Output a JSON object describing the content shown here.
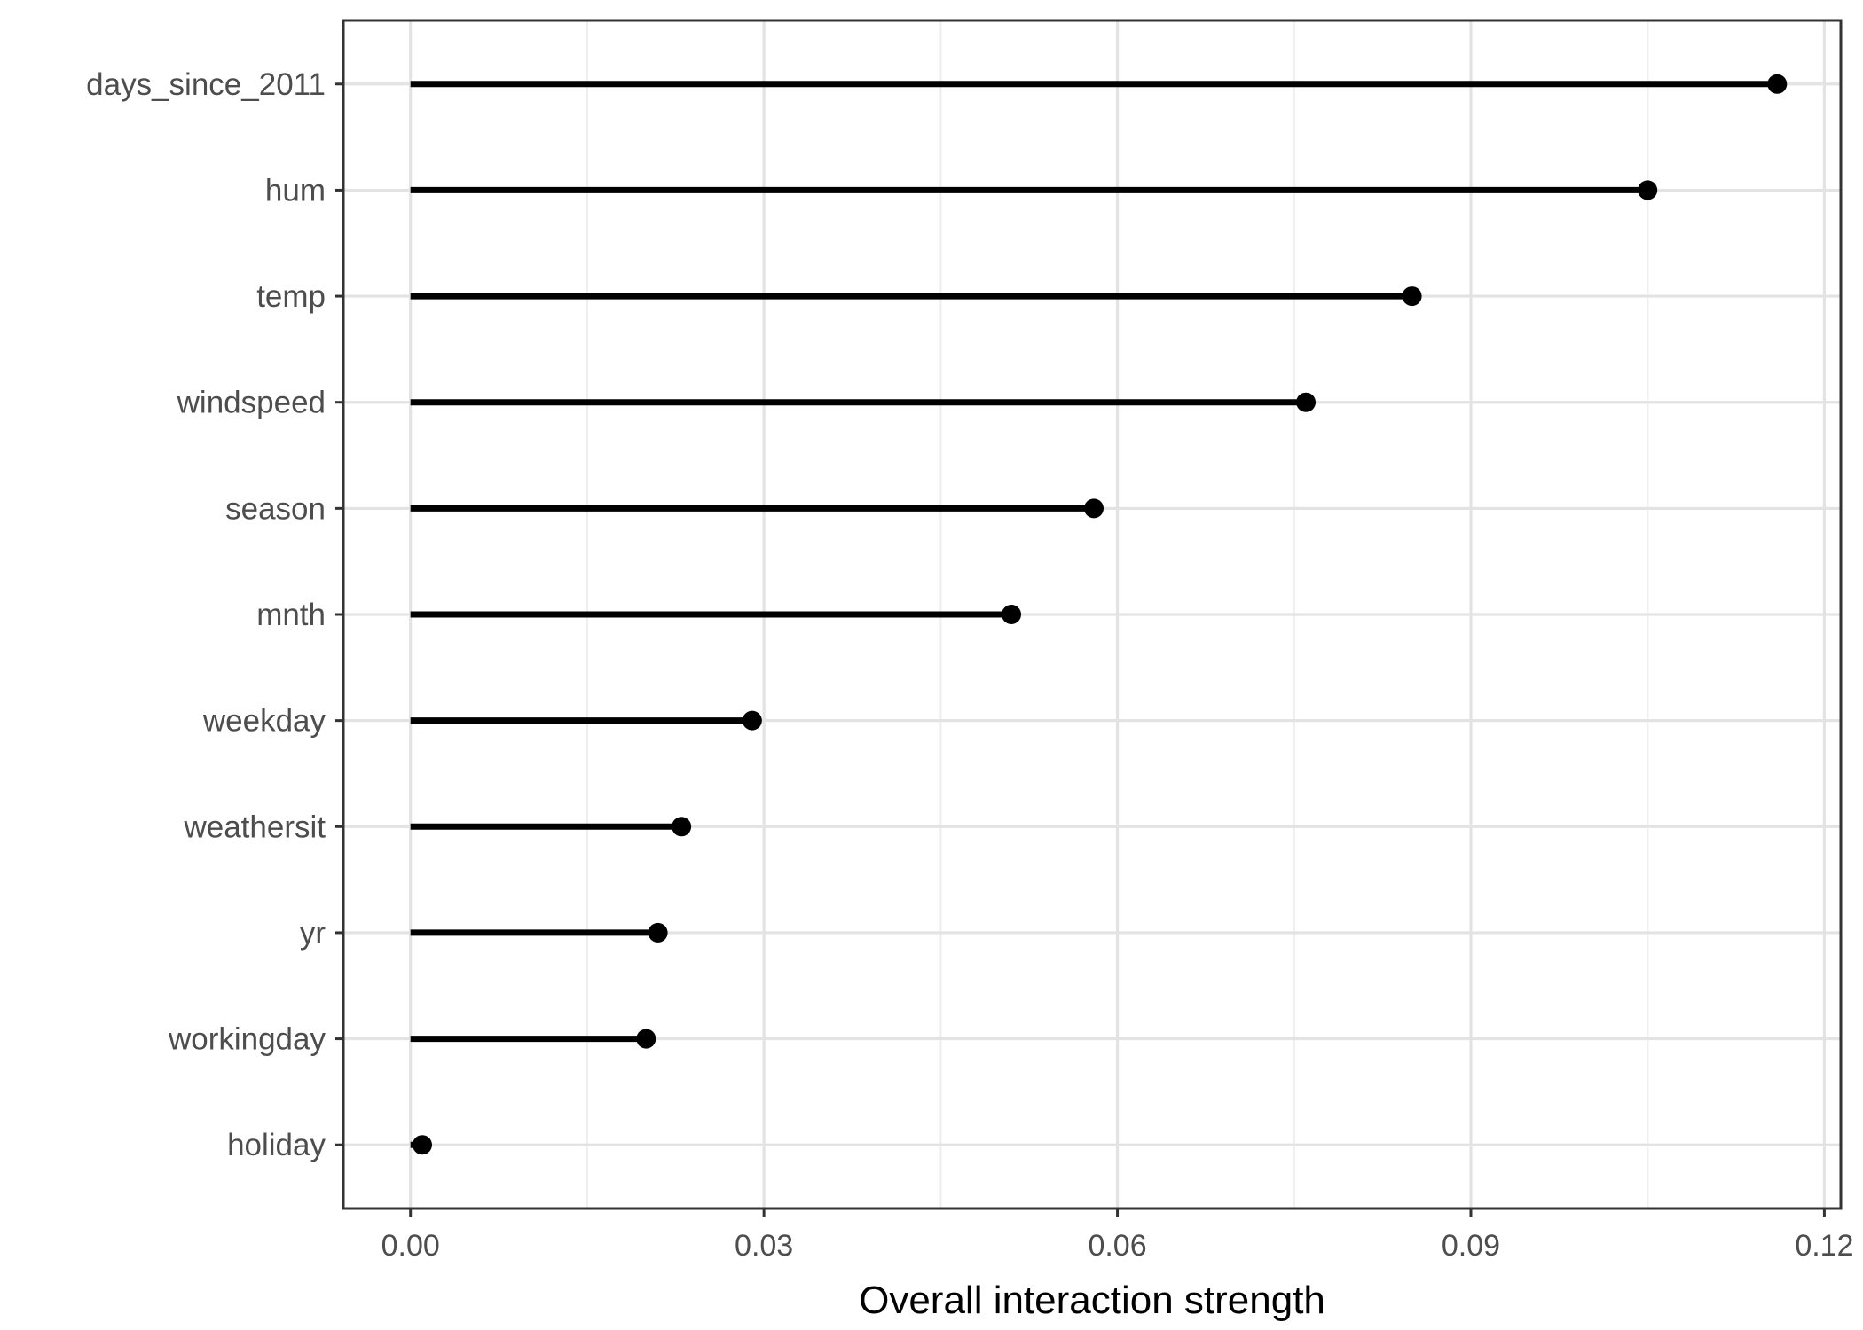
{
  "chart_data": {
    "type": "bar",
    "variant": "lollipop",
    "orientation": "horizontal",
    "title": "",
    "xlabel": "Overall interaction strength",
    "ylabel": "",
    "categories": [
      "days_since_2011",
      "hum",
      "temp",
      "windspeed",
      "season",
      "mnth",
      "weekday",
      "weathersit",
      "yr",
      "workingday",
      "holiday"
    ],
    "values": [
      0.116,
      0.105,
      0.085,
      0.076,
      0.058,
      0.051,
      0.029,
      0.023,
      0.021,
      0.02,
      0.001
    ],
    "xlim": [
      -0.0057,
      0.1214
    ],
    "x_major_ticks": [
      0.0,
      0.03,
      0.06,
      0.09,
      0.12
    ],
    "x_tick_labels": [
      "0.00",
      "0.03",
      "0.06",
      "0.09",
      "0.12"
    ],
    "x_minor_ticks": [
      0.015,
      0.045,
      0.075,
      0.105
    ],
    "grid": "vertical major+minor, horizontal major per category",
    "legend": "none",
    "colors": {
      "background": "#FFFFFF",
      "panel_border": "#333333",
      "grid_major": "#E3E3E3",
      "grid_minor": "#EFEFEF",
      "tick_mark": "#333333",
      "axis_text": "#4D4D4D",
      "axis_title": "#000000",
      "point": "#000000",
      "stem": "#000000"
    }
  }
}
